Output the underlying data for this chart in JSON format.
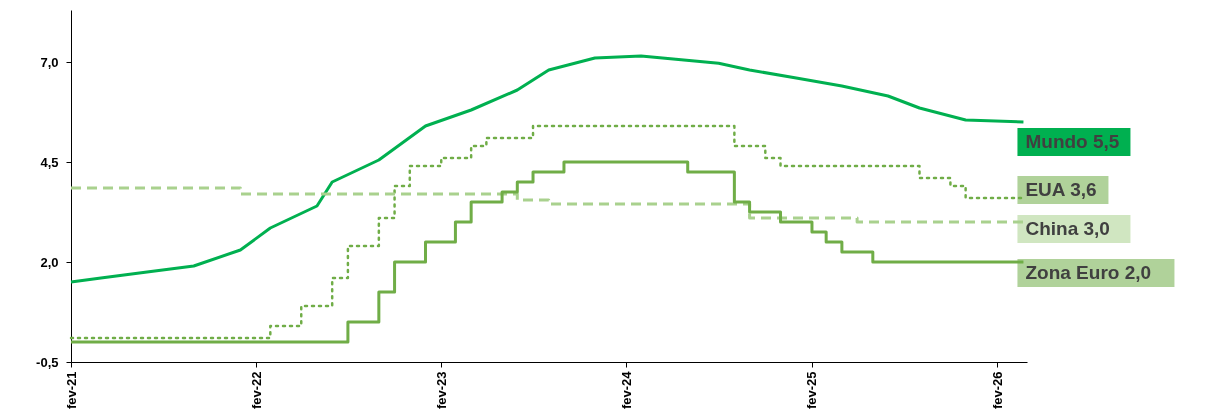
{
  "chart_data": {
    "type": "line",
    "xlim": [
      "2021-02",
      "2026-04"
    ],
    "xticks": [
      {
        "value": "2021-02",
        "label": "fev-21"
      },
      {
        "value": "2022-02",
        "label": "fev-22"
      },
      {
        "value": "2023-02",
        "label": "fev-23"
      },
      {
        "value": "2024-02",
        "label": "fev-24"
      },
      {
        "value": "2025-02",
        "label": "fev-25"
      },
      {
        "value": "2026-02",
        "label": "fev-26"
      }
    ],
    "ylim": [
      -0.5,
      8.3
    ],
    "yticks": [
      {
        "value": -0.5,
        "label": "-0,5"
      },
      {
        "value": 2,
        "label": "2,0"
      },
      {
        "value": 4.5,
        "label": "4,5"
      },
      {
        "value": 7,
        "label": "7,0"
      }
    ],
    "grid": false,
    "legend": "right",
    "series": [
      {
        "name": "Mundo 5,5",
        "color": "#00b050",
        "line_style": "solid",
        "x": [
          "2021-02",
          "2021-04",
          "2021-07",
          "2021-10",
          "2022-01",
          "2022-03",
          "2022-06",
          "2022-07",
          "2022-10",
          "2023-01",
          "2023-04",
          "2023-07",
          "2023-09",
          "2023-12",
          "2024-03",
          "2024-08",
          "2024-10",
          "2025-01",
          "2025-04",
          "2025-07",
          "2025-09",
          "2025-12",
          "2026-03-25"
        ],
        "values": [
          1.5,
          1.6,
          1.75,
          1.9,
          2.3,
          2.85,
          3.4,
          4.0,
          4.55,
          5.4,
          5.8,
          6.3,
          6.8,
          7.1,
          7.15,
          6.97,
          6.8,
          6.6,
          6.4,
          6.15,
          5.85,
          5.55,
          5.5
        ]
      },
      {
        "name": "EUA 3,6",
        "type": "step",
        "color": "#70ad47",
        "line_style": "dotted",
        "x": [
          "2021-02",
          "2022-03",
          "2022-05",
          "2022-07",
          "2022-08",
          "2022-10",
          "2022-11",
          "2022-12",
          "2023-02",
          "2023-04",
          "2023-05",
          "2023-08",
          "2024-09",
          "2024-11",
          "2024-12",
          "2025-09",
          "2025-11",
          "2025-12",
          "2026-03-25"
        ],
        "values": [
          0.1,
          0.4,
          0.9,
          1.6,
          2.4,
          3.1,
          3.9,
          4.4,
          4.6,
          4.9,
          5.1,
          5.4,
          4.9,
          4.6,
          4.4,
          4.1,
          3.9,
          3.6,
          3.6
        ]
      },
      {
        "name": "China 3,0",
        "type": "step",
        "color": "#a9d18e",
        "line_style": "dashed",
        "x": [
          "2021-02",
          "2022-01",
          "2023-07",
          "2023-09",
          "2024-10",
          "2025-05",
          "2026-03-25"
        ],
        "values": [
          3.85,
          3.7,
          3.55,
          3.45,
          3.1,
          3.0,
          3.0
        ]
      },
      {
        "name": "Zona Euro 2,0",
        "type": "step",
        "color": "#70ad47",
        "line_style": "solid",
        "x": [
          "2021-02",
          "2022-08",
          "2022-10",
          "2022-11",
          "2023-01",
          "2023-03",
          "2023-04",
          "2023-06",
          "2023-07",
          "2023-08",
          "2023-10",
          "2024-06",
          "2024-09",
          "2024-10",
          "2024-12",
          "2025-02",
          "2025-03",
          "2025-04",
          "2025-06",
          "2026-03-25"
        ],
        "values": [
          0,
          0.5,
          1.25,
          2.0,
          2.5,
          3.0,
          3.5,
          3.75,
          4.0,
          4.25,
          4.5,
          4.25,
          3.5,
          3.25,
          3.0,
          2.75,
          2.5,
          2.25,
          2.0,
          2.0
        ]
      }
    ]
  }
}
